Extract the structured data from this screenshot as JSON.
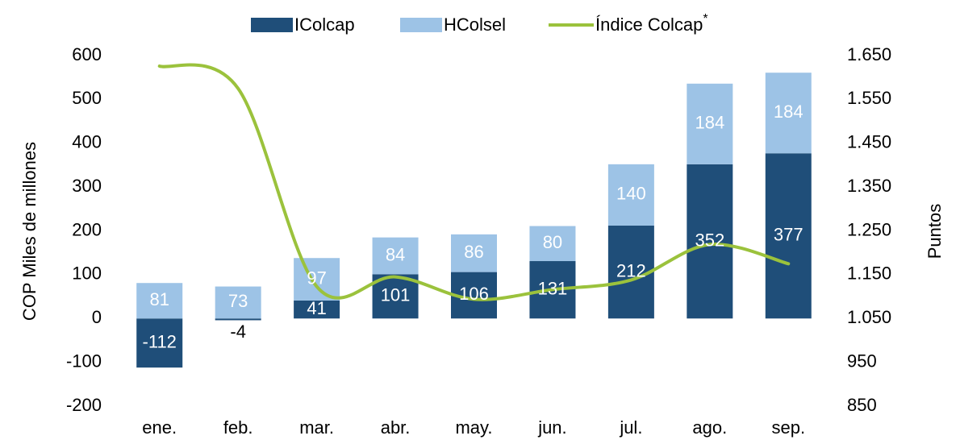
{
  "chart_data": {
    "type": "bar",
    "categories": [
      "ene.",
      "feb.",
      "mar.",
      "abr.",
      "may.",
      "jun.",
      "jul.",
      "ago.",
      "sep."
    ],
    "series": [
      {
        "name": "IColcap",
        "color": "#1f4e79",
        "values": [
          -112,
          -4,
          41,
          101,
          106,
          131,
          212,
          352,
          377
        ]
      },
      {
        "name": "HColsel",
        "color": "#9dc3e6",
        "values": [
          81,
          73,
          97,
          84,
          86,
          80,
          140,
          184,
          184
        ]
      },
      {
        "name": "Índice Colcap",
        "name_mark": "*",
        "type": "line",
        "axis": "y2",
        "color": "#9bc23c",
        "values": [
          1626,
          1575,
          1123,
          1145,
          1094,
          1116,
          1138,
          1219,
          1175
        ]
      }
    ],
    "ylabel": "COP Miles de millones",
    "y2label": "Puntos",
    "ylim": [
      -200,
      600
    ],
    "yticks": [
      -200,
      -100,
      0,
      100,
      200,
      300,
      400,
      500,
      600
    ],
    "y2lim": [
      850,
      1650
    ],
    "y2ticks": [
      850,
      950,
      {
        "value": 1050,
        "label": "1.050"
      },
      {
        "value": 1150,
        "label": "1.150"
      },
      {
        "value": 1250,
        "label": "1.250"
      },
      {
        "value": 1350,
        "label": "1.350"
      },
      {
        "value": 1450,
        "label": "1.450"
      },
      {
        "value": 1550,
        "label": "1.550"
      },
      {
        "value": 1650,
        "label": "1.650"
      }
    ],
    "grid": false,
    "legend": "top"
  }
}
